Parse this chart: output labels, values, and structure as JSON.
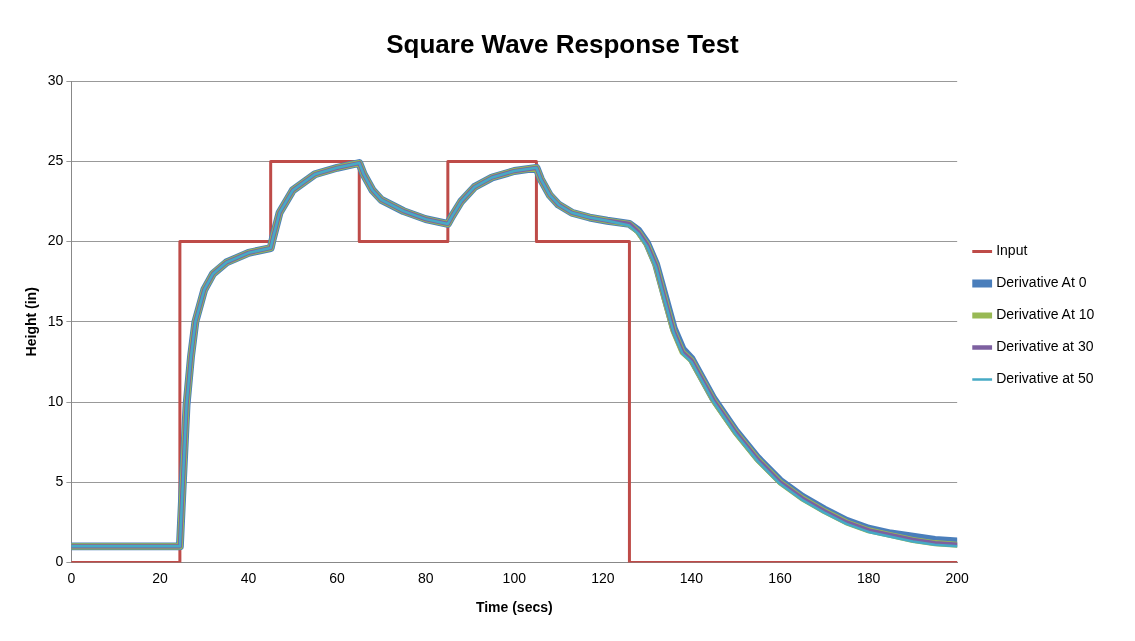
{
  "chart_data": {
    "type": "line",
    "title": "Square Wave Response Test",
    "xlabel": "Time (secs)",
    "ylabel": "Height (in)",
    "x": [
      0,
      24,
      24.5,
      25,
      26,
      27,
      28,
      30,
      32,
      35,
      40,
      45,
      45.5,
      47,
      50,
      55,
      60,
      65,
      66,
      68,
      70,
      75,
      80,
      85,
      86,
      88,
      91,
      95,
      100,
      105,
      106,
      108,
      110,
      113,
      117,
      121,
      126,
      128,
      130,
      132,
      134,
      136,
      138,
      140,
      145,
      150,
      155,
      160,
      165,
      170,
      175,
      180,
      185,
      190,
      195,
      200
    ],
    "series": [
      {
        "name": "Input",
        "color": "#be4b48",
        "x": [
          0,
          24.5,
          24.5,
          45,
          45,
          65,
          65,
          85,
          85,
          105,
          105,
          126,
          126,
          200
        ],
        "values": [
          0,
          0,
          20,
          20,
          25,
          25,
          20,
          20,
          25,
          25,
          20,
          20,
          0,
          0
        ]
      },
      {
        "name": "Derivative At 0",
        "color": "#4a7ebb",
        "values": [
          1,
          1,
          1,
          4,
          9.8,
          12.8,
          15,
          17,
          18,
          18.7,
          19.3,
          19.6,
          20.2,
          21.8,
          23.2,
          24.2,
          24.6,
          24.9,
          24.2,
          23.2,
          22.6,
          21.9,
          21.4,
          21.1,
          21.6,
          22.5,
          23.4,
          24,
          24.4,
          24.6,
          23.9,
          22.9,
          22.3,
          21.8,
          21.5,
          21.3,
          21.1,
          20.7,
          19.9,
          18.6,
          16.6,
          14.6,
          13.3,
          12.7,
          10.2,
          8.2,
          6.5,
          5.1,
          4.1,
          3.3,
          2.6,
          2.1,
          1.8,
          1.6,
          1.4,
          1.3
        ]
      },
      {
        "name": "Derivative At 10",
        "color": "#98b954",
        "values": [
          1,
          1,
          1,
          4,
          9.8,
          12.8,
          15,
          17,
          18,
          18.7,
          19.3,
          19.6,
          20.2,
          21.8,
          23.2,
          24.2,
          24.6,
          24.9,
          24.2,
          23.2,
          22.6,
          21.9,
          21.4,
          21.1,
          21.6,
          22.5,
          23.4,
          24,
          24.4,
          24.6,
          23.9,
          22.9,
          22.3,
          21.8,
          21.5,
          21.3,
          21.1,
          20.6,
          19.8,
          18.5,
          16.4,
          14.4,
          13.1,
          12.6,
          10.1,
          8.1,
          6.4,
          5,
          4,
          3.2,
          2.5,
          2,
          1.7,
          1.4,
          1.2,
          1.1
        ]
      },
      {
        "name": "Derivative at 30",
        "color": "#7d60a0",
        "values": [
          1,
          1,
          1,
          4,
          9.8,
          12.8,
          15,
          17,
          18,
          18.7,
          19.3,
          19.6,
          20.2,
          21.8,
          23.2,
          24.2,
          24.6,
          24.9,
          24.2,
          23.2,
          22.6,
          21.9,
          21.4,
          21.1,
          21.6,
          22.5,
          23.4,
          24,
          24.4,
          24.6,
          23.9,
          22.9,
          22.3,
          21.8,
          21.5,
          21.3,
          21.1,
          20.6,
          19.8,
          18.5,
          16.4,
          14.4,
          13.1,
          12.6,
          10.1,
          8.1,
          6.4,
          5,
          4,
          3.2,
          2.5,
          2,
          1.7,
          1.4,
          1.2,
          1.1
        ]
      },
      {
        "name": "Derivative at 50",
        "color": "#46aac5",
        "values": [
          1,
          1,
          1,
          4,
          9.8,
          12.8,
          15,
          17,
          18,
          18.7,
          19.3,
          19.6,
          20.2,
          21.8,
          23.2,
          24.2,
          24.6,
          24.9,
          24.2,
          23.2,
          22.6,
          21.9,
          21.4,
          21.1,
          21.6,
          22.5,
          23.4,
          24,
          24.4,
          24.6,
          23.9,
          22.9,
          22.3,
          21.8,
          21.5,
          21.3,
          21,
          20.5,
          19.7,
          18.4,
          16.3,
          14.3,
          13,
          12.5,
          10,
          8,
          6.3,
          4.9,
          3.9,
          3.1,
          2.4,
          1.9,
          1.6,
          1.3,
          1.1,
          1
        ]
      }
    ],
    "xlim": [
      0,
      200
    ],
    "xticks": [
      0,
      20,
      40,
      60,
      80,
      100,
      120,
      140,
      160,
      180,
      200
    ],
    "ylim": [
      0,
      30
    ],
    "yticks": [
      0,
      5,
      10,
      15,
      20,
      25,
      30
    ],
    "grid": "y",
    "legend": "right",
    "marker": "none",
    "line_style": "solid"
  }
}
